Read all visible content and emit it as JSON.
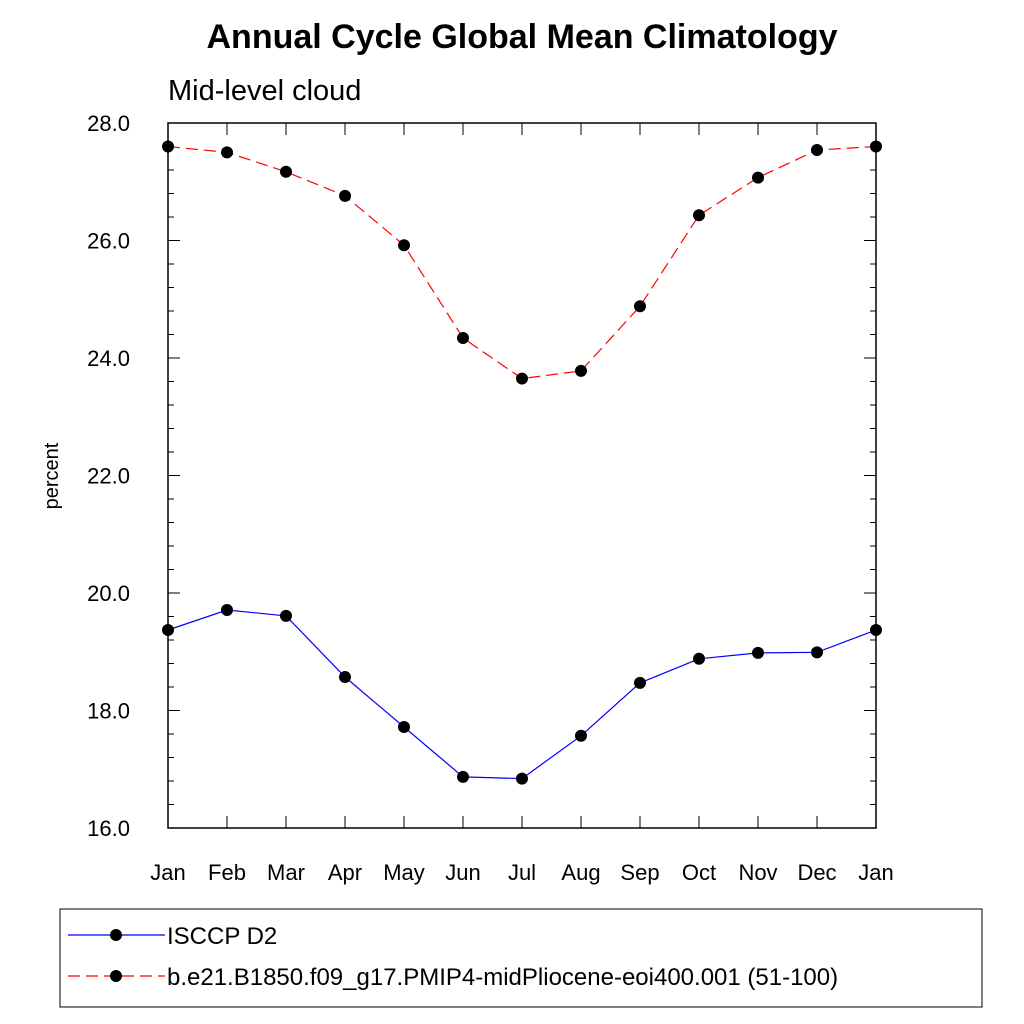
{
  "chart_data": {
    "type": "line",
    "title": "Annual Cycle Global Mean Climatology",
    "subtitle": "Mid-level cloud",
    "xlabel": "",
    "ylabel": "percent",
    "categories": [
      "Jan",
      "Feb",
      "Mar",
      "Apr",
      "May",
      "Jun",
      "Jul",
      "Aug",
      "Sep",
      "Oct",
      "Nov",
      "Dec",
      "Jan"
    ],
    "ylim": [
      16.0,
      28.0
    ],
    "yticks": [
      "16.0",
      "18.0",
      "20.0",
      "22.0",
      "24.0",
      "26.0",
      "28.0"
    ],
    "grid": false,
    "legend_position": "bottom",
    "series": [
      {
        "name": "ISCCP D2",
        "color": "#0000ff",
        "style": "solid",
        "values": [
          19.37,
          19.71,
          19.61,
          18.57,
          17.72,
          16.87,
          16.84,
          17.57,
          18.47,
          18.88,
          18.98,
          18.99,
          19.37
        ]
      },
      {
        "name": "b.e21.B1850.f09_g17.PMIP4-midPliocene-eoi400.001 (51-100)",
        "color": "#ff0000",
        "style": "dashed",
        "values": [
          27.6,
          27.5,
          27.17,
          26.76,
          25.92,
          24.34,
          23.65,
          23.78,
          24.88,
          26.43,
          27.07,
          27.54,
          27.6
        ]
      }
    ]
  }
}
